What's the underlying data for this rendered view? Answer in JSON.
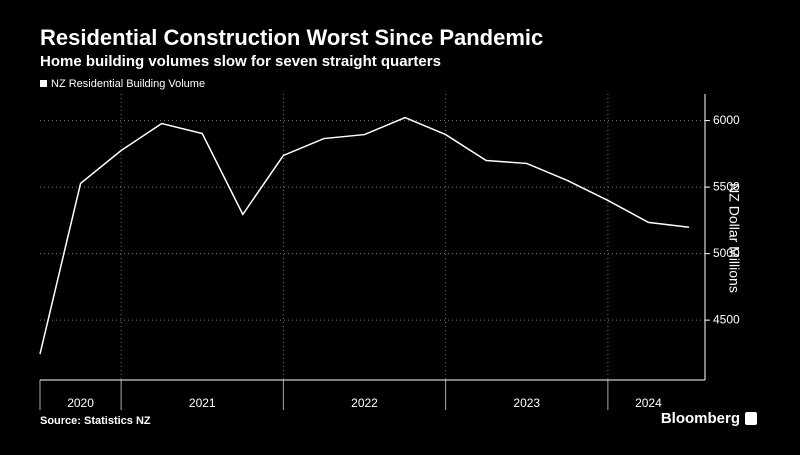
{
  "chart_data": {
    "type": "line",
    "title": "Residential Construction Worst Since Pandemic",
    "subtitle": "Home building volumes slow for seven straight quarters",
    "y_label": "NZ Dollar Millions",
    "source": "Source: Statistics NZ",
    "brand": "Bloomberg",
    "x": [
      2020.5,
      2020.75,
      2021,
      2021.25,
      2021.5,
      2021.75,
      2022,
      2022.25,
      2022.5,
      2022.75,
      2023,
      2023.25,
      2023.5,
      2023.75,
      2024,
      2024.25,
      2024.5
    ],
    "series": [
      {
        "name": "NZ Residential Building Volume",
        "color": "#ffffff",
        "values": [
          4245,
          5528,
          5775,
          5978,
          5903,
          5295,
          5738,
          5865,
          5895,
          6023,
          5895,
          5700,
          5678,
          5550,
          5400,
          5235,
          5198
        ]
      }
    ],
    "xlim": [
      2020.5,
      2024.5
    ],
    "xticks": [
      {
        "value": 2020.75,
        "label": "2020"
      },
      {
        "value": 2021.5,
        "label": "2021"
      },
      {
        "value": 2022.5,
        "label": "2022"
      },
      {
        "value": 2023.5,
        "label": "2023"
      },
      {
        "value": 2024.25,
        "label": "2024"
      }
    ],
    "xgrid": [
      2021,
      2022,
      2023,
      2024
    ],
    "ylim": [
      4050,
      6200
    ],
    "yticks": [
      4500,
      5000,
      5500,
      6000
    ],
    "grid": true,
    "legend": "top-left"
  }
}
